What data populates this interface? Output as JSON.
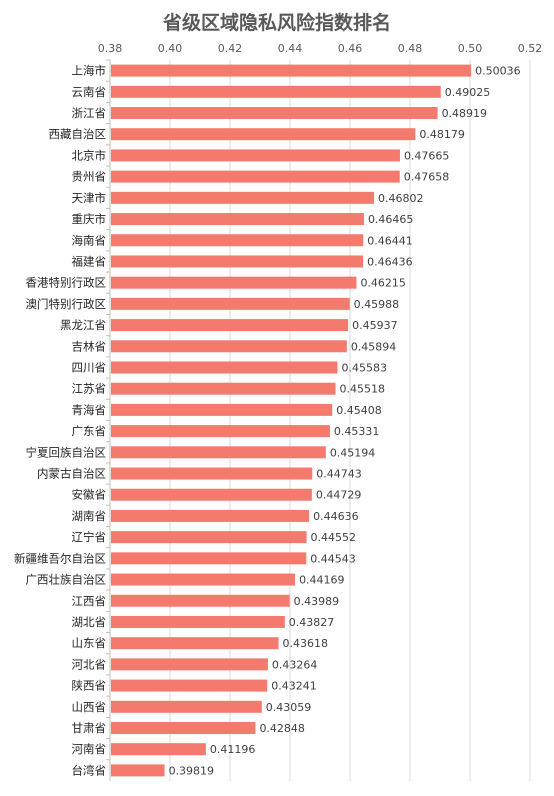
{
  "chart_data": {
    "type": "bar",
    "orientation": "horizontal",
    "title": "省级区域隐私风险指数排名",
    "xlabel": "",
    "ylabel": "",
    "xlim": [
      0.38,
      0.52
    ],
    "x_ticks": [
      "0.38",
      "0.40",
      "0.42",
      "0.44",
      "0.46",
      "0.48",
      "0.50",
      "0.52"
    ],
    "x_tick_values": [
      0.38,
      0.4,
      0.42,
      0.44,
      0.46,
      0.48,
      0.5,
      0.52
    ],
    "axis_position": "top",
    "grid": true,
    "legend": false,
    "bar_color": "#f47a6e",
    "categories": [
      "上海市",
      "云南省",
      "浙江省",
      "西藏自治区",
      "北京市",
      "贵州省",
      "天津市",
      "重庆市",
      "海南省",
      "福建省",
      "香港特别行政区",
      "澳门特别行政区",
      "黑龙江省",
      "吉林省",
      "四川省",
      "江苏省",
      "青海省",
      "广东省",
      "宁夏回族自治区",
      "内蒙古自治区",
      "安徽省",
      "湖南省",
      "辽宁省",
      "新疆维吾尔自治区",
      "广西壮族自治区",
      "江西省",
      "湖北省",
      "山东省",
      "河北省",
      "陕西省",
      "山西省",
      "甘肃省",
      "河南省",
      "台湾省"
    ],
    "values": [
      0.50036,
      0.49025,
      0.48919,
      0.48179,
      0.47665,
      0.47658,
      0.46802,
      0.46465,
      0.46441,
      0.46436,
      0.46215,
      0.45988,
      0.45937,
      0.45894,
      0.45583,
      0.45518,
      0.45408,
      0.45331,
      0.45194,
      0.44743,
      0.44729,
      0.44636,
      0.44552,
      0.44543,
      0.44169,
      0.43989,
      0.43827,
      0.43618,
      0.43264,
      0.43241,
      0.43059,
      0.42848,
      0.41196,
      0.39819
    ],
    "value_labels": [
      "0.50036",
      "0.49025",
      "0.48919",
      "0.48179",
      "0.47665",
      "0.47658",
      "0.46802",
      "0.46465",
      "0.46441",
      "0.46436",
      "0.46215",
      "0.45988",
      "0.45937",
      "0.45894",
      "0.45583",
      "0.45518",
      "0.45408",
      "0.45331",
      "0.45194",
      "0.44743",
      "0.44729",
      "0.44636",
      "0.44552",
      "0.44543",
      "0.44169",
      "0.43989",
      "0.43827",
      "0.43618",
      "0.43264",
      "0.43241",
      "0.43059",
      "0.42848",
      "0.41196",
      "0.39819"
    ]
  }
}
